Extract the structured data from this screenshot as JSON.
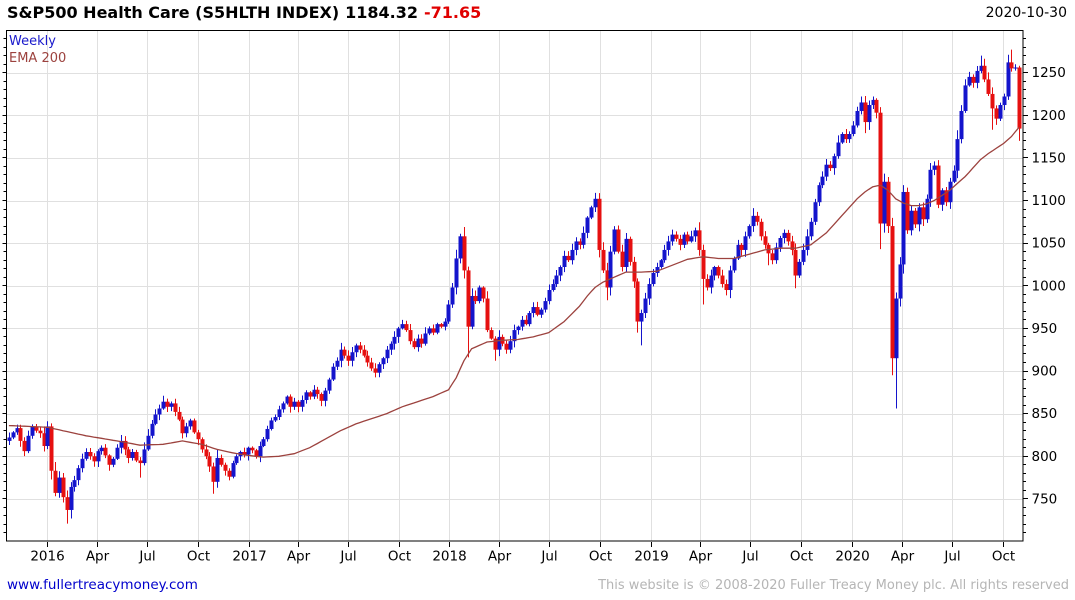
{
  "header": {
    "title": "S&P500 Health Care (S5HLTH INDEX)",
    "last": "1184.32",
    "change": "-71.65",
    "date": "2020-10-30"
  },
  "legend": [
    {
      "label": "Weekly",
      "color": "#1a1acc"
    },
    {
      "label": "EMA 200",
      "color": "#9c423e"
    }
  ],
  "footer": {
    "site": "www.fullertreacymoney.com",
    "copyright": "This website is © 2008-2020 Fuller Treacy Money plc. All rights reserved"
  },
  "chart_data": {
    "type": "candlestick",
    "title": "S&P500 Health Care (S5HLTH INDEX)",
    "series_label": "Weekly",
    "overlay_label": "EMA 200",
    "last_close": 1184.32,
    "change": -71.65,
    "as_of": "2020-10-30",
    "ylim": [
      700,
      1300
    ],
    "y_labels": [
      750,
      800,
      850,
      900,
      950,
      1000,
      1050,
      1100,
      1150,
      1200,
      1250
    ],
    "y_minor_step": 10,
    "grid": true,
    "x_ticks": [
      [
        "2016",
        10
      ],
      [
        "Apr",
        23
      ],
      [
        "Jul",
        36
      ],
      [
        "Oct",
        49.1
      ],
      [
        "2017",
        62.3
      ],
      [
        "Apr",
        75.1
      ],
      [
        "Jul",
        88.1
      ],
      [
        "Oct",
        101.3
      ],
      [
        "2018",
        114.4
      ],
      [
        "Apr",
        127.3
      ],
      [
        "Jul",
        140.3
      ],
      [
        "Oct",
        153.4
      ],
      [
        "2019",
        166.6
      ],
      [
        "Apr",
        179.4
      ],
      [
        "Jul",
        192.4
      ],
      [
        "Oct",
        205.6
      ],
      [
        "2020",
        218.7
      ],
      [
        "Apr",
        231.7
      ],
      [
        "Jul",
        244.7
      ],
      [
        "Oct",
        257.9
      ]
    ],
    "weekly_closes": [
      822,
      828,
      833,
      818,
      806,
      824,
      835,
      830,
      827,
      812,
      835,
      783,
      757,
      775,
      752,
      737,
      764,
      772,
      786,
      797,
      805,
      800,
      794,
      806,
      810,
      801,
      790,
      797,
      810,
      818,
      808,
      798,
      805,
      795,
      792,
      808,
      824,
      838,
      849,
      856,
      864,
      858,
      862,
      852,
      843,
      827,
      835,
      842,
      828,
      820,
      808,
      800,
      788,
      770,
      798,
      790,
      783,
      776,
      792,
      800,
      805,
      802,
      810,
      807,
      800,
      812,
      820,
      832,
      842,
      846,
      855,
      862,
      870,
      858,
      864,
      858,
      866,
      875,
      870,
      878,
      873,
      865,
      877,
      890,
      905,
      912,
      925,
      918,
      912,
      922,
      930,
      925,
      918,
      910,
      903,
      898,
      908,
      915,
      925,
      932,
      940,
      950,
      955,
      948,
      935,
      928,
      938,
      932,
      944,
      950,
      945,
      955,
      952,
      958,
      978,
      998,
      1032,
      1058,
      1018,
      952,
      988,
      982,
      998,
      985,
      948,
      938,
      925,
      940,
      932,
      925,
      935,
      948,
      952,
      960,
      955,
      968,
      975,
      966,
      972,
      982,
      995,
      1002,
      1012,
      1022,
      1035,
      1030,
      1042,
      1052,
      1048,
      1062,
      1080,
      1092,
      1102,
      1042,
      1018,
      998,
      1040,
      1066,
      1040,
      1022,
      1055,
      1028,
      1005,
      958,
      968,
      985,
      1002,
      1015,
      1022,
      1030,
      1042,
      1052,
      1060,
      1055,
      1048,
      1060,
      1052,
      1058,
      1065,
      1042,
      1008,
      998,
      1012,
      1022,
      1012,
      1002,
      995,
      1018,
      1032,
      1048,
      1042,
      1058,
      1070,
      1082,
      1075,
      1058,
      1048,
      1038,
      1030,
      1045,
      1056,
      1062,
      1052,
      1042,
      1012,
      1028,
      1042,
      1058,
      1075,
      1098,
      1118,
      1128,
      1142,
      1138,
      1152,
      1168,
      1178,
      1172,
      1178,
      1188,
      1205,
      1215,
      1192,
      1212,
      1218,
      1203,
      1073,
      1122,
      1070,
      915,
      985,
      1025,
      1110,
      1065,
      1088,
      1072,
      1092,
      1078,
      1102,
      1136,
      1141,
      1095,
      1112,
      1098,
      1122,
      1135,
      1172,
      1205,
      1235,
      1245,
      1238,
      1252,
      1258,
      1242,
      1225,
      1208,
      1196,
      1212,
      1222,
      1262,
      1255,
      1256,
      1184.32
    ],
    "wick_overrides": {
      "10": [
        841,
        null
      ],
      "15": [
        null,
        721
      ],
      "16": [
        null,
        727
      ],
      "34": [
        null,
        775
      ],
      "40": [
        871,
        null
      ],
      "53": [
        null,
        756
      ],
      "54": [
        null,
        763
      ],
      "86": [
        933,
        null
      ],
      "102": [
        960,
        null
      ],
      "117": [
        1061,
        null
      ],
      "119": [
        null,
        916
      ],
      "126": [
        null,
        912
      ],
      "152": [
        1109,
        null
      ],
      "155": [
        null,
        983
      ],
      "163": [
        null,
        945
      ],
      "164": [
        null,
        930
      ],
      "180": [
        null,
        978
      ],
      "193": [
        1091,
        null
      ],
      "197": [
        null,
        1024
      ],
      "204": [
        null,
        997
      ],
      "221": [
        1222,
        null
      ],
      "222": [
        null,
        1179
      ],
      "224": [
        1222,
        null
      ],
      "226": [
        null,
        1043
      ],
      "229": [
        null,
        895
      ],
      "230": [
        null,
        856
      ],
      "232": [
        1118,
        null
      ],
      "252": [
        1270,
        null
      ],
      "255": [
        null,
        1183
      ],
      "259": [
        1271,
        null
      ],
      "260": [
        1277,
        null
      ],
      "262": [
        1258,
        1170
      ]
    },
    "ema_points": [
      [
        0,
        836
      ],
      [
        10,
        834
      ],
      [
        20,
        824
      ],
      [
        28,
        818
      ],
      [
        34,
        813
      ],
      [
        40,
        814
      ],
      [
        45,
        818
      ],
      [
        50,
        814
      ],
      [
        54,
        808
      ],
      [
        58,
        804
      ],
      [
        62,
        801
      ],
      [
        66,
        799
      ],
      [
        70,
        800
      ],
      [
        74,
        803
      ],
      [
        78,
        810
      ],
      [
        82,
        820
      ],
      [
        86,
        830
      ],
      [
        90,
        838
      ],
      [
        94,
        844
      ],
      [
        98,
        850
      ],
      [
        102,
        858
      ],
      [
        106,
        864
      ],
      [
        110,
        870
      ],
      [
        114,
        878
      ],
      [
        116,
        892
      ],
      [
        118,
        912
      ],
      [
        120,
        926
      ],
      [
        124,
        934
      ],
      [
        128,
        936
      ],
      [
        132,
        937
      ],
      [
        136,
        940
      ],
      [
        140,
        945
      ],
      [
        144,
        958
      ],
      [
        148,
        976
      ],
      [
        150,
        988
      ],
      [
        152,
        998
      ],
      [
        154,
        1004
      ],
      [
        156,
        1008
      ],
      [
        160,
        1016
      ],
      [
        164,
        1016
      ],
      [
        168,
        1017
      ],
      [
        172,
        1024
      ],
      [
        176,
        1031
      ],
      [
        180,
        1034
      ],
      [
        184,
        1032
      ],
      [
        188,
        1032
      ],
      [
        192,
        1037
      ],
      [
        196,
        1042
      ],
      [
        200,
        1044
      ],
      [
        204,
        1044
      ],
      [
        208,
        1048
      ],
      [
        212,
        1062
      ],
      [
        216,
        1082
      ],
      [
        218,
        1092
      ],
      [
        220,
        1102
      ],
      [
        222,
        1110
      ],
      [
        224,
        1116
      ],
      [
        226,
        1118
      ],
      [
        228,
        1112
      ],
      [
        230,
        1102
      ],
      [
        232,
        1097
      ],
      [
        234,
        1094
      ],
      [
        236,
        1094
      ],
      [
        238,
        1096
      ],
      [
        240,
        1100
      ],
      [
        242,
        1106
      ],
      [
        244,
        1112
      ],
      [
        246,
        1120
      ],
      [
        248,
        1128
      ],
      [
        250,
        1138
      ],
      [
        252,
        1148
      ],
      [
        254,
        1155
      ],
      [
        256,
        1161
      ],
      [
        258,
        1167
      ],
      [
        260,
        1175
      ],
      [
        262,
        1186
      ]
    ],
    "colors": {
      "up": "#1414cc",
      "down": "#e61010",
      "ema": "#9c423e",
      "grid": "#e0e0e0",
      "axis": "#000000",
      "label": "#000000"
    }
  }
}
